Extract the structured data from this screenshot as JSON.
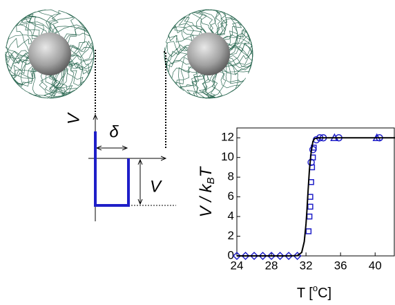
{
  "diagram": {
    "labels": [
      "V",
      "δ",
      "V"
    ]
  },
  "chart_data": {
    "type": "scatter",
    "x_label_parts": [
      "T [",
      "o",
      "C]"
    ],
    "y_label_parts": [
      "V / k",
      "B",
      "T"
    ],
    "xlim": [
      24,
      42.3
    ],
    "ylim": [
      0,
      13
    ],
    "xticks": [
      24,
      28,
      32,
      36,
      40
    ],
    "yticks": [
      0,
      2,
      4,
      6,
      8,
      10,
      12
    ],
    "series": [
      {
        "marker": "diamond",
        "color": "#1f1fc8",
        "x": [
          24,
          25,
          26,
          27,
          28,
          29,
          30,
          31
        ],
        "values": [
          0,
          0,
          0,
          0,
          0,
          0,
          0,
          0
        ]
      },
      {
        "marker": "square",
        "color": "#1f1fc8",
        "x": [
          32.3,
          32.4,
          32.5,
          32.5,
          32.6,
          32.7,
          32.8,
          32.9
        ],
        "values": [
          2.5,
          4,
          5,
          6,
          7.5,
          9,
          10,
          11
        ]
      },
      {
        "marker": "circle",
        "color": "#1f1fc8",
        "x": [
          32.6,
          32.8,
          33.2,
          33.6,
          34,
          35.8,
          40.5
        ],
        "values": [
          9.5,
          10.8,
          11.8,
          12,
          12,
          12,
          12
        ]
      },
      {
        "marker": "triangle",
        "color": "#1f1fc8",
        "x": [
          35.3,
          40.2
        ],
        "values": [
          12,
          12
        ]
      },
      {
        "marker": "line",
        "color": "#000000",
        "x": [
          24,
          30,
          31,
          31.5,
          31.8,
          32,
          32.1,
          32.2,
          32.3,
          32.4,
          32.6,
          32.8,
          33,
          33.5,
          34,
          42.3
        ],
        "values": [
          0,
          0,
          0.03,
          0.35,
          1.45,
          3.23,
          4.53,
          6,
          7.47,
          8.77,
          10.55,
          11.63,
          11.92,
          12,
          12,
          12
        ]
      }
    ]
  }
}
